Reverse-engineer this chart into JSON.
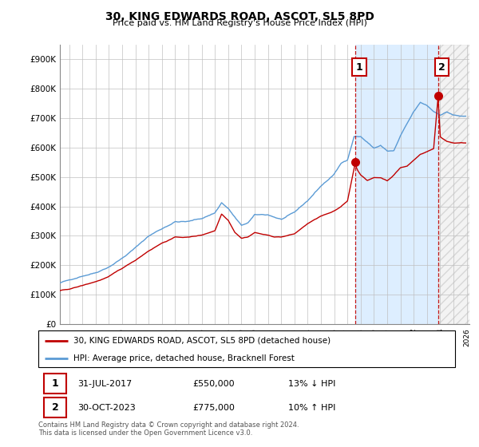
{
  "title": "30, KING EDWARDS ROAD, ASCOT, SL5 8PD",
  "subtitle": "Price paid vs. HM Land Registry's House Price Index (HPI)",
  "legend_line1": "30, KING EDWARDS ROAD, ASCOT, SL5 8PD (detached house)",
  "legend_line2": "HPI: Average price, detached house, Bracknell Forest",
  "annotation1_date": "31-JUL-2017",
  "annotation1_price": "£550,000",
  "annotation1_hpi": "13% ↓ HPI",
  "annotation2_date": "30-OCT-2023",
  "annotation2_price": "£775,000",
  "annotation2_hpi": "10% ↑ HPI",
  "footer": "Contains HM Land Registry data © Crown copyright and database right 2024.\nThis data is licensed under the Open Government Licence v3.0.",
  "hpi_color": "#5b9bd5",
  "price_color": "#c00000",
  "annotation_box_color": "#c00000",
  "background_color": "#ffffff",
  "grid_color": "#c0c0c0",
  "highlight_bg": "#ddeeff",
  "ylim": [
    0,
    950000
  ],
  "yticks": [
    0,
    100000,
    200000,
    300000,
    400000,
    500000,
    600000,
    700000,
    800000,
    900000
  ],
  "ytick_labels": [
    "£0",
    "£100K",
    "£200K",
    "£300K",
    "£400K",
    "£500K",
    "£600K",
    "£700K",
    "£800K",
    "£900K"
  ],
  "sale1_x": 2017.583,
  "sale1_y": 550000,
  "sale2_x": 2023.833,
  "sale2_y": 775000,
  "xlim_left": 1995.5,
  "xlim_right": 2026.2
}
